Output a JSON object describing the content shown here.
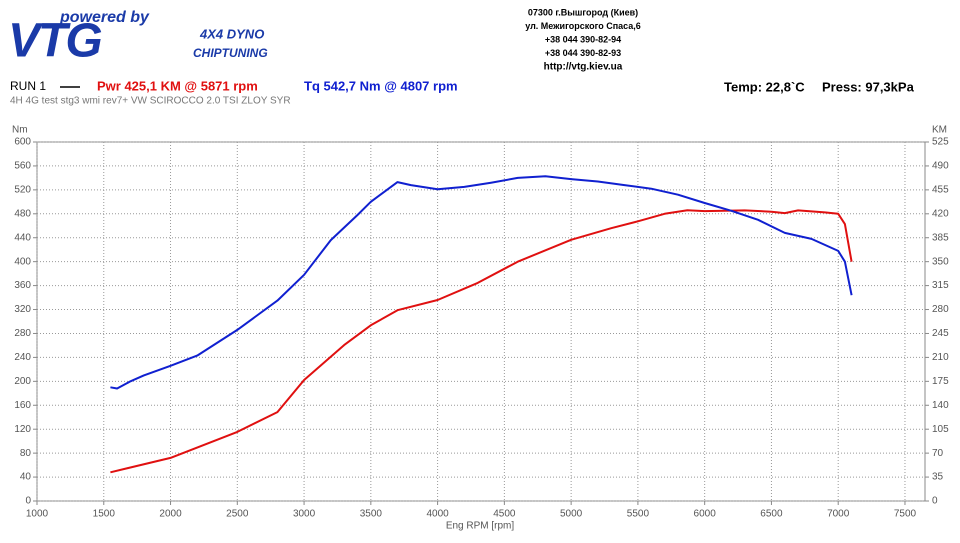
{
  "header": {
    "tagline": "powered by",
    "logo": "VTG",
    "dyno": "4X4 DYNO",
    "service": "CHIPTUNING",
    "address": [
      "07300 г.Вышгород (Киев)",
      "ул. Межигорского Спаса,6",
      "+38 044 390-82-94",
      "+38 044 390-82-93",
      "http://vtg.kiev.ua"
    ]
  },
  "chart_data": {
    "type": "line",
    "run_label": "RUN 1",
    "subtitle": "4H 4G test stg3 wmi rev7+ VW SCIROCCO 2.0 TSI ZLOY SYR",
    "temp": "Temp: 22,8`C",
    "press": "Press: 97,3kPa",
    "ylabel": "Nm",
    "y2label": "KM",
    "xlabel": "Eng RPM [rpm]",
    "xlim": [
      1000,
      7650
    ],
    "xticks": [
      1000,
      1500,
      2000,
      2500,
      3000,
      3500,
      4000,
      4500,
      5000,
      5500,
      6000,
      6500,
      7000,
      7500
    ],
    "ylim": [
      0,
      600
    ],
    "yticks": [
      0,
      40,
      80,
      120,
      160,
      200,
      240,
      280,
      320,
      360,
      400,
      440,
      480,
      520,
      560,
      600
    ],
    "y2lim": [
      0,
      525
    ],
    "y2ticks": [
      0,
      35,
      70,
      105,
      140,
      175,
      210,
      245,
      280,
      315,
      350,
      385,
      420,
      455,
      490,
      525
    ],
    "grid": true,
    "series": [
      {
        "name": "Pwr  425,1 KM @ 5871 rpm",
        "color": "#e01010",
        "axis": "y2",
        "x": [
          1550,
          2000,
          2500,
          2800,
          3000,
          3300,
          3500,
          3700,
          4000,
          4300,
          4600,
          5000,
          5300,
          5500,
          5700,
          5871,
          6000,
          6300,
          6500,
          6600,
          6700,
          6900,
          7000,
          7050,
          7100
        ],
        "values": [
          42,
          63,
          101,
          130,
          177,
          228,
          257,
          279,
          294,
          319,
          350,
          382,
          399,
          409,
          420,
          425.1,
          424,
          425,
          423,
          421,
          425,
          422,
          420,
          405,
          350
        ]
      },
      {
        "name": "Tq  542,7 Nm @ 4807 rpm",
        "color": "#1020d0",
        "axis": "y",
        "x": [
          1550,
          1600,
          1700,
          1800,
          2000,
          2200,
          2500,
          2800,
          3000,
          3200,
          3400,
          3500,
          3700,
          3800,
          4000,
          4200,
          4400,
          4600,
          4807,
          5000,
          5200,
          5400,
          5600,
          5800,
          6000,
          6200,
          6400,
          6600,
          6800,
          7000,
          7050,
          7100
        ],
        "values": [
          190,
          188,
          200,
          210,
          226,
          243,
          286,
          335,
          378,
          436,
          478,
          500,
          533,
          528,
          521,
          525,
          532,
          540,
          542.7,
          538,
          534,
          528,
          522,
          512,
          498,
          485,
          470,
          448,
          438,
          418,
          400,
          344
        ]
      }
    ]
  }
}
